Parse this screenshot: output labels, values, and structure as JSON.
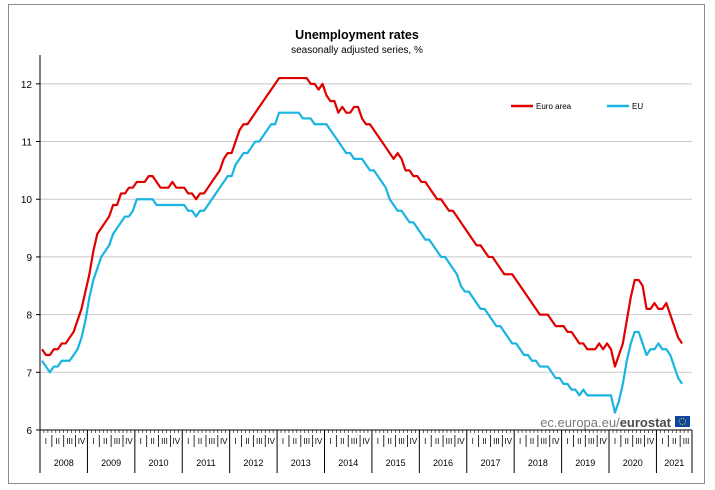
{
  "chart_data": {
    "type": "line",
    "title": "Unemployment rates",
    "subtitle": "seasonally adjusted series, %",
    "xlabel": "",
    "ylabel": "",
    "ylim": [
      6,
      12.5
    ],
    "yticks": [
      6,
      7,
      8,
      9,
      10,
      11,
      12
    ],
    "grid": true,
    "legend_position": "top-right",
    "quarter_labels": [
      "I",
      "II",
      "III",
      "IV"
    ],
    "years": [
      "2008",
      "2009",
      "2010",
      "2011",
      "2012",
      "2013",
      "2014",
      "2015",
      "2016",
      "2017",
      "2018",
      "2019",
      "2020",
      "2021"
    ],
    "last_year_quarters": 3,
    "x_start": "2008-01",
    "frequency": "monthly",
    "colors": {
      "euro_area": "#e00000",
      "eu": "#1ab4e0",
      "axis": "#000000",
      "grid": "#c8c8c8"
    },
    "series": [
      {
        "name": "Euro area",
        "color": "#e00000",
        "values": [
          7.4,
          7.3,
          7.3,
          7.4,
          7.4,
          7.5,
          7.5,
          7.6,
          7.7,
          7.9,
          8.1,
          8.4,
          8.7,
          9.1,
          9.4,
          9.5,
          9.6,
          9.7,
          9.9,
          9.9,
          10.1,
          10.1,
          10.2,
          10.2,
          10.3,
          10.3,
          10.3,
          10.4,
          10.4,
          10.3,
          10.2,
          10.2,
          10.2,
          10.3,
          10.2,
          10.2,
          10.2,
          10.1,
          10.1,
          10.0,
          10.1,
          10.1,
          10.2,
          10.3,
          10.4,
          10.5,
          10.7,
          10.8,
          10.8,
          11.0,
          11.2,
          11.3,
          11.3,
          11.4,
          11.5,
          11.6,
          11.7,
          11.8,
          11.9,
          12.0,
          12.1,
          12.1,
          12.1,
          12.1,
          12.1,
          12.1,
          12.1,
          12.1,
          12.0,
          12.0,
          11.9,
          12.0,
          11.8,
          11.7,
          11.7,
          11.5,
          11.6,
          11.5,
          11.5,
          11.6,
          11.6,
          11.4,
          11.3,
          11.3,
          11.2,
          11.1,
          11.0,
          10.9,
          10.8,
          10.7,
          10.8,
          10.7,
          10.5,
          10.5,
          10.4,
          10.4,
          10.3,
          10.3,
          10.2,
          10.1,
          10.0,
          10.0,
          9.9,
          9.8,
          9.8,
          9.7,
          9.6,
          9.5,
          9.4,
          9.3,
          9.2,
          9.2,
          9.1,
          9.0,
          9.0,
          8.9,
          8.8,
          8.7,
          8.7,
          8.7,
          8.6,
          8.5,
          8.4,
          8.3,
          8.2,
          8.1,
          8.0,
          8.0,
          8.0,
          7.9,
          7.8,
          7.8,
          7.8,
          7.7,
          7.7,
          7.6,
          7.5,
          7.5,
          7.4,
          7.4,
          7.4,
          7.5,
          7.4,
          7.5,
          7.4,
          7.1,
          7.3,
          7.5,
          7.9,
          8.3,
          8.6,
          8.6,
          8.5,
          8.1,
          8.1,
          8.2,
          8.1,
          8.1,
          8.2,
          8.0,
          7.8,
          7.6,
          7.5
        ]
      },
      {
        "name": "EU",
        "color": "#1ab4e0",
        "values": [
          7.2,
          7.1,
          7.0,
          7.1,
          7.1,
          7.2,
          7.2,
          7.2,
          7.3,
          7.4,
          7.6,
          7.9,
          8.3,
          8.6,
          8.8,
          9.0,
          9.1,
          9.2,
          9.4,
          9.5,
          9.6,
          9.7,
          9.7,
          9.8,
          10.0,
          10.0,
          10.0,
          10.0,
          10.0,
          9.9,
          9.9,
          9.9,
          9.9,
          9.9,
          9.9,
          9.9,
          9.9,
          9.8,
          9.8,
          9.7,
          9.8,
          9.8,
          9.9,
          10.0,
          10.1,
          10.2,
          10.3,
          10.4,
          10.4,
          10.6,
          10.7,
          10.8,
          10.8,
          10.9,
          11.0,
          11.0,
          11.1,
          11.2,
          11.3,
          11.3,
          11.5,
          11.5,
          11.5,
          11.5,
          11.5,
          11.5,
          11.4,
          11.4,
          11.4,
          11.3,
          11.3,
          11.3,
          11.3,
          11.2,
          11.1,
          11.0,
          10.9,
          10.8,
          10.8,
          10.7,
          10.7,
          10.7,
          10.6,
          10.5,
          10.5,
          10.4,
          10.3,
          10.2,
          10.0,
          9.9,
          9.8,
          9.8,
          9.7,
          9.6,
          9.6,
          9.5,
          9.4,
          9.3,
          9.3,
          9.2,
          9.1,
          9.0,
          9.0,
          8.9,
          8.8,
          8.7,
          8.5,
          8.4,
          8.4,
          8.3,
          8.2,
          8.1,
          8.1,
          8.0,
          7.9,
          7.8,
          7.8,
          7.7,
          7.6,
          7.5,
          7.5,
          7.4,
          7.3,
          7.3,
          7.2,
          7.2,
          7.1,
          7.1,
          7.1,
          7.0,
          6.9,
          6.9,
          6.8,
          6.8,
          6.7,
          6.7,
          6.6,
          6.7,
          6.6,
          6.6,
          6.6,
          6.6,
          6.6,
          6.6,
          6.6,
          6.3,
          6.5,
          6.8,
          7.2,
          7.5,
          7.7,
          7.7,
          7.5,
          7.3,
          7.4,
          7.4,
          7.5,
          7.4,
          7.4,
          7.3,
          7.1,
          6.9,
          6.8
        ]
      }
    ]
  },
  "watermark": {
    "prefix": "ec.europa.eu/",
    "brand": "eurostat"
  }
}
